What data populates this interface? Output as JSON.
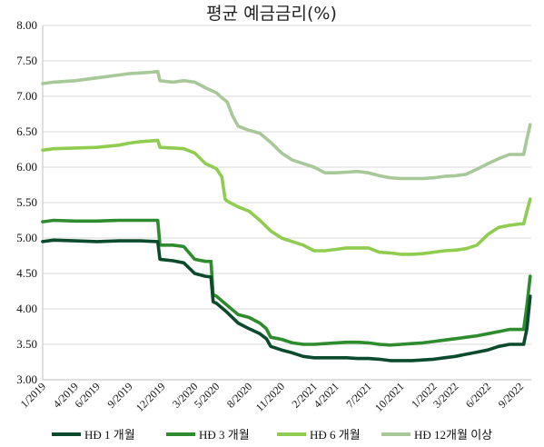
{
  "chart_data": {
    "type": "line",
    "title": "평균 예금금리(%)",
    "xlabel": "",
    "ylabel": "",
    "ylim": [
      3.0,
      8.0
    ],
    "yticks": [
      "3.00",
      "3.50",
      "4.00",
      "4.50",
      "5.00",
      "5.50",
      "6.00",
      "6.50",
      "7.00",
      "7.50",
      "8.00"
    ],
    "xlim": [
      0,
      45
    ],
    "xtick_labels": [
      "1/2019",
      "4/2019",
      "6/2019",
      "9/2019",
      "12/2019",
      "3/2020",
      "5/2020",
      "8/2020",
      "11/2020",
      "2/2021",
      "4/2021",
      "7/2021",
      "10/2021",
      "1/2022",
      "3/2022",
      "6/2022",
      "9/2022"
    ],
    "xtick_positions": [
      0,
      3,
      5,
      8,
      11,
      14,
      16,
      19,
      22,
      25,
      27,
      30,
      33,
      36,
      38,
      41,
      44
    ],
    "grid": true,
    "legend": "bottom",
    "series": [
      {
        "name": "HĐ 1 개월",
        "color": "#0b4a2c",
        "points": [
          [
            0,
            4.95
          ],
          [
            1,
            4.97
          ],
          [
            3,
            4.96
          ],
          [
            5,
            4.95
          ],
          [
            7,
            4.96
          ],
          [
            9,
            4.96
          ],
          [
            10.6,
            4.95
          ],
          [
            10.8,
            4.7
          ],
          [
            12,
            4.68
          ],
          [
            13,
            4.65
          ],
          [
            14,
            4.5
          ],
          [
            15,
            4.46
          ],
          [
            15.5,
            4.45
          ],
          [
            15.7,
            4.1
          ],
          [
            16,
            4.08
          ],
          [
            17,
            3.95
          ],
          [
            18,
            3.8
          ],
          [
            19,
            3.72
          ],
          [
            20,
            3.65
          ],
          [
            20.6,
            3.58
          ],
          [
            21,
            3.47
          ],
          [
            22,
            3.42
          ],
          [
            23,
            3.38
          ],
          [
            24,
            3.33
          ],
          [
            25,
            3.31
          ],
          [
            26,
            3.31
          ],
          [
            27,
            3.31
          ],
          [
            28,
            3.31
          ],
          [
            29,
            3.3
          ],
          [
            30,
            3.3
          ],
          [
            31,
            3.29
          ],
          [
            32,
            3.27
          ],
          [
            33,
            3.27
          ],
          [
            34,
            3.27
          ],
          [
            35,
            3.28
          ],
          [
            36,
            3.29
          ],
          [
            37,
            3.31
          ],
          [
            38,
            3.33
          ],
          [
            39,
            3.36
          ],
          [
            40,
            3.39
          ],
          [
            41,
            3.42
          ],
          [
            42,
            3.47
          ],
          [
            43,
            3.5
          ],
          [
            44,
            3.5
          ],
          [
            44.3,
            3.5
          ],
          [
            44.6,
            3.72
          ],
          [
            44.9,
            4.18
          ]
        ]
      },
      {
        "name": "HĐ 3 개월",
        "color": "#2e8b2e",
        "points": [
          [
            0,
            5.23
          ],
          [
            1,
            5.25
          ],
          [
            3,
            5.24
          ],
          [
            5,
            5.24
          ],
          [
            7,
            5.25
          ],
          [
            9,
            5.25
          ],
          [
            10.6,
            5.25
          ],
          [
            10.8,
            4.9
          ],
          [
            12,
            4.9
          ],
          [
            13,
            4.88
          ],
          [
            14,
            4.7
          ],
          [
            15,
            4.67
          ],
          [
            15.5,
            4.67
          ],
          [
            15.7,
            4.2
          ],
          [
            16,
            4.18
          ],
          [
            17,
            4.05
          ],
          [
            18,
            3.92
          ],
          [
            19,
            3.88
          ],
          [
            20,
            3.8
          ],
          [
            20.6,
            3.72
          ],
          [
            21,
            3.6
          ],
          [
            22,
            3.57
          ],
          [
            23,
            3.52
          ],
          [
            24,
            3.5
          ],
          [
            25,
            3.5
          ],
          [
            26,
            3.51
          ],
          [
            27,
            3.52
          ],
          [
            28,
            3.53
          ],
          [
            29,
            3.53
          ],
          [
            30,
            3.52
          ],
          [
            31,
            3.5
          ],
          [
            32,
            3.49
          ],
          [
            33,
            3.5
          ],
          [
            34,
            3.51
          ],
          [
            35,
            3.52
          ],
          [
            36,
            3.54
          ],
          [
            37,
            3.56
          ],
          [
            38,
            3.58
          ],
          [
            39,
            3.6
          ],
          [
            40,
            3.62
          ],
          [
            41,
            3.65
          ],
          [
            42,
            3.68
          ],
          [
            43,
            3.71
          ],
          [
            44,
            3.71
          ],
          [
            44.3,
            3.71
          ],
          [
            44.6,
            4.05
          ],
          [
            44.9,
            4.46
          ]
        ]
      },
      {
        "name": "HĐ 6 개월",
        "color": "#8fcc4f",
        "points": [
          [
            0,
            6.24
          ],
          [
            1,
            6.26
          ],
          [
            3,
            6.27
          ],
          [
            5,
            6.28
          ],
          [
            7,
            6.31
          ],
          [
            8,
            6.34
          ],
          [
            9,
            6.36
          ],
          [
            10,
            6.37
          ],
          [
            10.6,
            6.38
          ],
          [
            10.8,
            6.28
          ],
          [
            12,
            6.27
          ],
          [
            13,
            6.26
          ],
          [
            14,
            6.2
          ],
          [
            15,
            6.05
          ],
          [
            16,
            5.98
          ],
          [
            16.5,
            5.86
          ],
          [
            16.8,
            5.55
          ],
          [
            17,
            5.52
          ],
          [
            18,
            5.44
          ],
          [
            19,
            5.38
          ],
          [
            20,
            5.25
          ],
          [
            21,
            5.1
          ],
          [
            22,
            5.0
          ],
          [
            23,
            4.95
          ],
          [
            24,
            4.9
          ],
          [
            25,
            4.82
          ],
          [
            26,
            4.82
          ],
          [
            27,
            4.84
          ],
          [
            28,
            4.86
          ],
          [
            29,
            4.86
          ],
          [
            30,
            4.86
          ],
          [
            31,
            4.8
          ],
          [
            32,
            4.79
          ],
          [
            33,
            4.77
          ],
          [
            34,
            4.77
          ],
          [
            35,
            4.78
          ],
          [
            36,
            4.8
          ],
          [
            37,
            4.82
          ],
          [
            38,
            4.83
          ],
          [
            39,
            4.85
          ],
          [
            40,
            4.9
          ],
          [
            41,
            5.05
          ],
          [
            42,
            5.15
          ],
          [
            43,
            5.18
          ],
          [
            44,
            5.2
          ],
          [
            44.3,
            5.2
          ],
          [
            44.6,
            5.38
          ],
          [
            44.9,
            5.55
          ]
        ]
      },
      {
        "name": "HĐ 12개월 이상",
        "color": "#a8c89a",
        "points": [
          [
            0,
            7.18
          ],
          [
            1,
            7.2
          ],
          [
            3,
            7.22
          ],
          [
            5,
            7.26
          ],
          [
            7,
            7.3
          ],
          [
            8,
            7.32
          ],
          [
            9,
            7.33
          ],
          [
            10,
            7.34
          ],
          [
            10.6,
            7.35
          ],
          [
            10.8,
            7.22
          ],
          [
            12,
            7.2
          ],
          [
            13,
            7.22
          ],
          [
            14,
            7.2
          ],
          [
            15,
            7.12
          ],
          [
            16,
            7.05
          ],
          [
            16.5,
            6.98
          ],
          [
            17,
            6.92
          ],
          [
            17.5,
            6.72
          ],
          [
            18,
            6.58
          ],
          [
            19,
            6.52
          ],
          [
            20,
            6.48
          ],
          [
            21,
            6.35
          ],
          [
            22,
            6.2
          ],
          [
            23,
            6.1
          ],
          [
            24,
            6.05
          ],
          [
            25,
            6.0
          ],
          [
            26,
            5.92
          ],
          [
            27,
            5.92
          ],
          [
            28,
            5.93
          ],
          [
            29,
            5.94
          ],
          [
            30,
            5.92
          ],
          [
            31,
            5.88
          ],
          [
            32,
            5.85
          ],
          [
            33,
            5.84
          ],
          [
            34,
            5.84
          ],
          [
            35,
            5.84
          ],
          [
            36,
            5.85
          ],
          [
            37,
            5.87
          ],
          [
            38,
            5.88
          ],
          [
            39,
            5.9
          ],
          [
            40,
            5.97
          ],
          [
            41,
            6.05
          ],
          [
            42,
            6.12
          ],
          [
            43,
            6.18
          ],
          [
            44,
            6.18
          ],
          [
            44.3,
            6.18
          ],
          [
            44.6,
            6.4
          ],
          [
            44.9,
            6.6
          ]
        ]
      }
    ]
  }
}
